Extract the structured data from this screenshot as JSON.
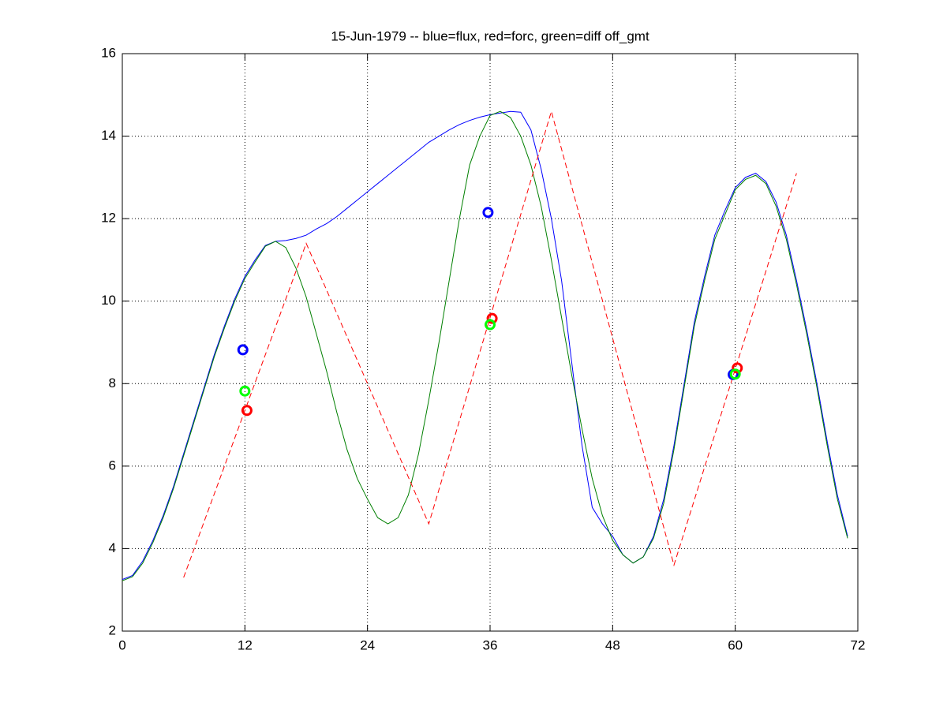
{
  "chart_data": {
    "type": "line",
    "title": "15-Jun-1979 -- blue=flux, red=forc, green=diff off_gmt",
    "xlim": [
      0,
      72
    ],
    "xticks": [
      0,
      12,
      24,
      36,
      48,
      60,
      72
    ],
    "ylim": [
      2,
      16
    ],
    "yticks": [
      2,
      4,
      6,
      8,
      10,
      12,
      14,
      16
    ],
    "grid": true,
    "series": [
      {
        "color": "#0000ff",
        "style": "solid",
        "x": [
          0,
          1,
          2,
          3,
          4,
          5,
          6,
          7,
          8,
          9,
          10,
          11,
          12,
          13,
          14,
          15,
          16,
          17,
          18,
          19,
          20,
          21,
          22,
          23,
          24,
          25,
          26,
          27,
          28,
          29,
          30,
          31,
          32,
          33,
          34,
          35,
          36,
          37,
          38,
          39,
          40,
          41,
          42,
          43,
          44,
          45,
          46,
          47,
          48,
          49,
          50,
          51,
          52,
          53,
          54,
          55,
          56,
          57,
          58,
          59,
          60,
          61,
          62,
          63,
          64,
          65,
          66,
          67,
          68,
          69,
          70,
          71
        ],
        "values": [
          3.25,
          3.35,
          3.7,
          4.2,
          4.8,
          5.5,
          6.3,
          7.1,
          7.9,
          8.7,
          9.4,
          10.05,
          10.6,
          11.0,
          11.35,
          11.45,
          11.47,
          11.52,
          11.6,
          11.75,
          11.88,
          12.05,
          12.25,
          12.45,
          12.65,
          12.85,
          13.05,
          13.25,
          13.45,
          13.65,
          13.85,
          14.0,
          14.15,
          14.28,
          14.38,
          14.46,
          14.52,
          14.56,
          14.6,
          14.58,
          14.15,
          13.2,
          12.0,
          10.5,
          8.5,
          6.5,
          5.0,
          4.6,
          4.3,
          3.85,
          3.65,
          3.8,
          4.3,
          5.2,
          6.5,
          8.0,
          9.5,
          10.6,
          11.6,
          12.2,
          12.75,
          13.0,
          13.1,
          12.9,
          12.4,
          11.6,
          10.5,
          9.3,
          8.0,
          6.6,
          5.3,
          4.3
        ]
      },
      {
        "color": "#007f00",
        "style": "solid",
        "x": [
          0,
          1,
          2,
          3,
          4,
          5,
          6,
          7,
          8,
          9,
          10,
          11,
          12,
          13,
          14,
          15,
          16,
          17,
          18,
          19,
          20,
          21,
          22,
          23,
          24,
          25,
          26,
          27,
          28,
          29,
          30,
          31,
          32,
          33,
          34,
          35,
          36,
          37,
          38,
          39,
          40,
          41,
          42,
          43,
          44,
          45,
          46,
          47,
          48,
          49,
          50,
          51,
          52,
          53,
          54,
          55,
          56,
          57,
          58,
          59,
          60,
          61,
          62,
          63,
          64,
          65,
          66,
          67,
          68,
          69,
          70,
          71
        ],
        "values": [
          3.22,
          3.32,
          3.65,
          4.15,
          4.75,
          5.45,
          6.25,
          7.05,
          7.85,
          8.65,
          9.35,
          10.0,
          10.55,
          10.95,
          11.33,
          11.45,
          11.3,
          10.8,
          10.1,
          9.2,
          8.3,
          7.3,
          6.4,
          5.7,
          5.2,
          4.75,
          4.6,
          4.75,
          5.3,
          6.3,
          7.6,
          9.0,
          10.5,
          12.0,
          13.3,
          14.0,
          14.5,
          14.6,
          14.45,
          14.0,
          13.3,
          12.3,
          11.0,
          9.6,
          8.2,
          6.9,
          5.7,
          4.8,
          4.2,
          3.85,
          3.65,
          3.8,
          4.25,
          5.1,
          6.4,
          7.9,
          9.4,
          10.5,
          11.5,
          12.1,
          12.7,
          12.95,
          13.05,
          12.85,
          12.3,
          11.5,
          10.4,
          9.2,
          7.9,
          6.5,
          5.2,
          4.25
        ]
      },
      {
        "color": "#ff0000",
        "style": "dashed",
        "x": [
          6,
          18,
          30,
          42,
          54,
          66
        ],
        "values": [
          3.3,
          11.4,
          4.6,
          14.6,
          3.6,
          13.1
        ]
      },
      {
        "color": "#0000ff",
        "style": "marker",
        "x": [
          11.8,
          35.8,
          59.8
        ],
        "values": [
          8.82,
          12.15,
          8.22
        ]
      },
      {
        "color": "#ff0000",
        "style": "marker",
        "x": [
          12.2,
          36.2,
          60.2
        ],
        "values": [
          7.35,
          9.58,
          8.38
        ]
      },
      {
        "color": "#00ff00",
        "style": "marker",
        "x": [
          12,
          36,
          60
        ],
        "values": [
          7.82,
          9.43,
          8.23
        ]
      }
    ]
  }
}
